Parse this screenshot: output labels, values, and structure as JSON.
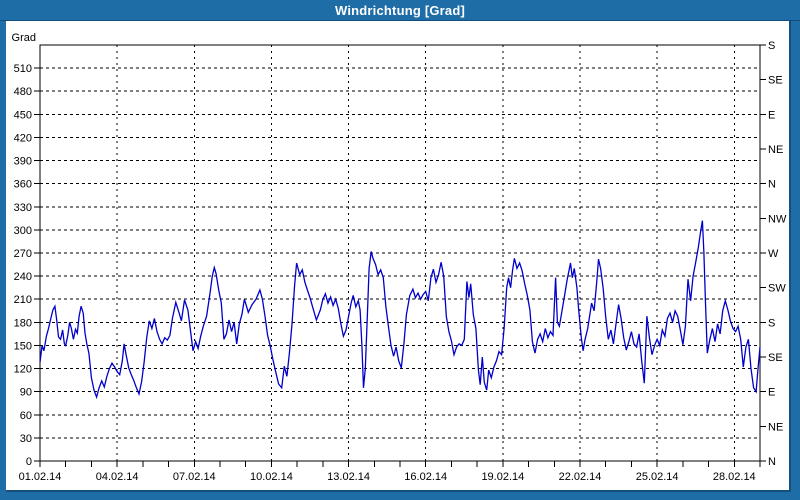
{
  "window": {
    "title": "Windrichtung [Grad]"
  },
  "colors": {
    "frame_blue": "#1e6da7",
    "frame_dark": "#164e7c",
    "series_blue": "#0000cc",
    "plot_background": "#ffffff",
    "grid_black": "#000000"
  },
  "chart_data": {
    "type": "line",
    "title": "Windrichtung [Grad]",
    "grid": "dashed",
    "legend": "none",
    "y_axis_left": {
      "unit_label": "Grad",
      "min": 0,
      "max": 540,
      "tick_step": 30,
      "tick_labels": [
        "0",
        "30",
        "60",
        "90",
        "120",
        "150",
        "180",
        "210",
        "240",
        "270",
        "300",
        "330",
        "360",
        "390",
        "420",
        "450",
        "480",
        "510"
      ]
    },
    "y_axis_right": {
      "tick_step": 45,
      "labels": [
        {
          "deg": 540,
          "label": "S"
        },
        {
          "deg": 495,
          "label": "SE"
        },
        {
          "deg": 450,
          "label": "E"
        },
        {
          "deg": 405,
          "label": "NE"
        },
        {
          "deg": 360,
          "label": "N"
        },
        {
          "deg": 315,
          "label": "NW"
        },
        {
          "deg": 270,
          "label": "W"
        },
        {
          "deg": 225,
          "label": "SW"
        },
        {
          "deg": 180,
          "label": "S"
        },
        {
          "deg": 135,
          "label": "SE"
        },
        {
          "deg": 90,
          "label": "E"
        },
        {
          "deg": 45,
          "label": "NE"
        },
        {
          "deg": 0,
          "label": "N"
        }
      ]
    },
    "x_axis": {
      "span_days": 28,
      "major_tick_interval_days": 3,
      "minor_tick_interval_days": 1,
      "tick_labels": [
        "01.02.14",
        "04.02.14",
        "07.02.14",
        "10.02.14",
        "13.02.14",
        "16.02.14",
        "19.02.14",
        "22.02.14",
        "25.02.14",
        "28.02.14"
      ]
    },
    "series": [
      {
        "name": "Windrichtung",
        "color": "#0000cc",
        "points": [
          [
            0,
            128
          ],
          [
            0.08,
            150
          ],
          [
            0.15,
            143
          ],
          [
            0.25,
            162
          ],
          [
            0.33,
            172
          ],
          [
            0.42,
            185
          ],
          [
            0.5,
            196
          ],
          [
            0.58,
            201
          ],
          [
            0.65,
            183
          ],
          [
            0.72,
            161
          ],
          [
            0.8,
            158
          ],
          [
            0.88,
            170
          ],
          [
            0.95,
            152
          ],
          [
            1.0,
            150
          ],
          [
            1.08,
            163
          ],
          [
            1.15,
            180
          ],
          [
            1.22,
            172
          ],
          [
            1.3,
            158
          ],
          [
            1.38,
            171
          ],
          [
            1.45,
            166
          ],
          [
            1.52,
            188
          ],
          [
            1.6,
            201
          ],
          [
            1.68,
            192
          ],
          [
            1.75,
            166
          ],
          [
            1.82,
            152
          ],
          [
            1.9,
            140
          ],
          [
            2.0,
            108
          ],
          [
            2.1,
            92
          ],
          [
            2.2,
            83
          ],
          [
            2.3,
            95
          ],
          [
            2.4,
            104
          ],
          [
            2.5,
            96
          ],
          [
            2.6,
            110
          ],
          [
            2.7,
            120
          ],
          [
            2.8,
            127
          ],
          [
            2.9,
            122
          ],
          [
            3.0,
            116
          ],
          [
            3.1,
            112
          ],
          [
            3.2,
            130
          ],
          [
            3.27,
            152
          ],
          [
            3.35,
            138
          ],
          [
            3.45,
            121
          ],
          [
            3.55,
            112
          ],
          [
            3.65,
            104
          ],
          [
            3.75,
            95
          ],
          [
            3.85,
            87
          ],
          [
            3.95,
            103
          ],
          [
            4.05,
            128
          ],
          [
            4.15,
            160
          ],
          [
            4.25,
            182
          ],
          [
            4.35,
            172
          ],
          [
            4.45,
            185
          ],
          [
            4.55,
            168
          ],
          [
            4.65,
            158
          ],
          [
            4.75,
            152
          ],
          [
            4.85,
            160
          ],
          [
            4.95,
            157
          ],
          [
            5.05,
            163
          ],
          [
            5.15,
            185
          ],
          [
            5.28,
            206
          ],
          [
            5.4,
            193
          ],
          [
            5.5,
            182
          ],
          [
            5.62,
            209
          ],
          [
            5.75,
            196
          ],
          [
            5.85,
            170
          ],
          [
            5.95,
            143
          ],
          [
            6.05,
            155
          ],
          [
            6.15,
            146
          ],
          [
            6.25,
            162
          ],
          [
            6.35,
            175
          ],
          [
            6.48,
            188
          ],
          [
            6.6,
            215
          ],
          [
            6.7,
            240
          ],
          [
            6.78,
            251
          ],
          [
            6.85,
            243
          ],
          [
            6.95,
            222
          ],
          [
            7.05,
            205
          ],
          [
            7.15,
            158
          ],
          [
            7.25,
            165
          ],
          [
            7.35,
            183
          ],
          [
            7.45,
            168
          ],
          [
            7.55,
            180
          ],
          [
            7.65,
            152
          ],
          [
            7.75,
            178
          ],
          [
            7.85,
            190
          ],
          [
            7.95,
            210
          ],
          [
            8.1,
            193
          ],
          [
            8.25,
            203
          ],
          [
            8.4,
            210
          ],
          [
            8.55,
            222
          ],
          [
            8.65,
            210
          ],
          [
            8.75,
            188
          ],
          [
            8.85,
            163
          ],
          [
            8.95,
            150
          ],
          [
            9.05,
            133
          ],
          [
            9.15,
            118
          ],
          [
            9.28,
            100
          ],
          [
            9.4,
            95
          ],
          [
            9.5,
            123
          ],
          [
            9.6,
            110
          ],
          [
            9.7,
            140
          ],
          [
            9.8,
            178
          ],
          [
            9.9,
            228
          ],
          [
            9.98,
            257
          ],
          [
            10.1,
            242
          ],
          [
            10.2,
            248
          ],
          [
            10.3,
            232
          ],
          [
            10.4,
            222
          ],
          [
            10.5,
            212
          ],
          [
            10.6,
            200
          ],
          [
            10.75,
            183
          ],
          [
            10.9,
            196
          ],
          [
            11.0,
            210
          ],
          [
            11.1,
            217
          ],
          [
            11.2,
            205
          ],
          [
            11.3,
            213
          ],
          [
            11.4,
            202
          ],
          [
            11.5,
            210
          ],
          [
            11.6,
            198
          ],
          [
            11.7,
            178
          ],
          [
            11.8,
            162
          ],
          [
            11.9,
            170
          ],
          [
            12.0,
            188
          ],
          [
            12.1,
            205
          ],
          [
            12.18,
            215
          ],
          [
            12.28,
            200
          ],
          [
            12.38,
            208
          ],
          [
            12.45,
            196
          ],
          [
            12.52,
            150
          ],
          [
            12.58,
            95
          ],
          [
            12.65,
            120
          ],
          [
            12.72,
            180
          ],
          [
            12.8,
            250
          ],
          [
            12.88,
            272
          ],
          [
            12.95,
            263
          ],
          [
            13.05,
            255
          ],
          [
            13.15,
            242
          ],
          [
            13.25,
            248
          ],
          [
            13.35,
            238
          ],
          [
            13.45,
            200
          ],
          [
            13.55,
            175
          ],
          [
            13.65,
            150
          ],
          [
            13.75,
            136
          ],
          [
            13.85,
            148
          ],
          [
            13.95,
            130
          ],
          [
            14.05,
            121
          ],
          [
            14.15,
            152
          ],
          [
            14.25,
            190
          ],
          [
            14.38,
            215
          ],
          [
            14.5,
            223
          ],
          [
            14.6,
            212
          ],
          [
            14.7,
            218
          ],
          [
            14.8,
            210
          ],
          [
            14.9,
            216
          ],
          [
            15.0,
            220
          ],
          [
            15.1,
            208
          ],
          [
            15.2,
            238
          ],
          [
            15.3,
            249
          ],
          [
            15.4,
            232
          ],
          [
            15.5,
            242
          ],
          [
            15.6,
            258
          ],
          [
            15.7,
            240
          ],
          [
            15.8,
            188
          ],
          [
            15.9,
            168
          ],
          [
            16.0,
            156
          ],
          [
            16.1,
            138
          ],
          [
            16.2,
            148
          ],
          [
            16.3,
            152
          ],
          [
            16.4,
            150
          ],
          [
            16.5,
            158
          ],
          [
            16.6,
            233
          ],
          [
            16.68,
            212
          ],
          [
            16.75,
            230
          ],
          [
            16.85,
            190
          ],
          [
            16.95,
            172
          ],
          [
            17.05,
            118
          ],
          [
            17.12,
            99
          ],
          [
            17.2,
            135
          ],
          [
            17.28,
            102
          ],
          [
            17.37,
            92
          ],
          [
            17.45,
            118
          ],
          [
            17.55,
            108
          ],
          [
            17.65,
            122
          ],
          [
            17.75,
            130
          ],
          [
            17.85,
            142
          ],
          [
            17.95,
            138
          ],
          [
            18.05,
            172
          ],
          [
            18.15,
            225
          ],
          [
            18.22,
            238
          ],
          [
            18.3,
            225
          ],
          [
            18.38,
            248
          ],
          [
            18.45,
            263
          ],
          [
            18.55,
            250
          ],
          [
            18.65,
            257
          ],
          [
            18.75,
            247
          ],
          [
            18.85,
            230
          ],
          [
            18.95,
            215
          ],
          [
            19.05,
            196
          ],
          [
            19.15,
            155
          ],
          [
            19.25,
            140
          ],
          [
            19.35,
            158
          ],
          [
            19.45,
            165
          ],
          [
            19.55,
            155
          ],
          [
            19.65,
            172
          ],
          [
            19.75,
            160
          ],
          [
            19.85,
            168
          ],
          [
            19.95,
            163
          ],
          [
            20.05,
            238
          ],
          [
            20.12,
            180
          ],
          [
            20.2,
            175
          ],
          [
            20.3,
            195
          ],
          [
            20.4,
            215
          ],
          [
            20.5,
            235
          ],
          [
            20.63,
            257
          ],
          [
            20.7,
            238
          ],
          [
            20.78,
            250
          ],
          [
            20.88,
            225
          ],
          [
            20.95,
            196
          ],
          [
            21.05,
            160
          ],
          [
            21.12,
            143
          ],
          [
            21.2,
            158
          ],
          [
            21.3,
            172
          ],
          [
            21.45,
            205
          ],
          [
            21.55,
            195
          ],
          [
            21.65,
            232
          ],
          [
            21.72,
            262
          ],
          [
            21.8,
            250
          ],
          [
            21.9,
            225
          ],
          [
            22.0,
            187
          ],
          [
            22.1,
            158
          ],
          [
            22.2,
            170
          ],
          [
            22.3,
            152
          ],
          [
            22.4,
            178
          ],
          [
            22.5,
            203
          ],
          [
            22.6,
            185
          ],
          [
            22.7,
            160
          ],
          [
            22.8,
            144
          ],
          [
            22.9,
            155
          ],
          [
            23.0,
            168
          ],
          [
            23.1,
            152
          ],
          [
            23.2,
            148
          ],
          [
            23.3,
            165
          ],
          [
            23.4,
            130
          ],
          [
            23.5,
            101
          ],
          [
            23.6,
            188
          ],
          [
            23.7,
            160
          ],
          [
            23.8,
            138
          ],
          [
            23.9,
            150
          ],
          [
            24.0,
            158
          ],
          [
            24.1,
            150
          ],
          [
            24.2,
            170
          ],
          [
            24.3,
            162
          ],
          [
            24.4,
            185
          ],
          [
            24.5,
            192
          ],
          [
            24.6,
            180
          ],
          [
            24.7,
            195
          ],
          [
            24.8,
            188
          ],
          [
            24.9,
            170
          ],
          [
            25.0,
            151
          ],
          [
            25.1,
            175
          ],
          [
            25.2,
            236
          ],
          [
            25.3,
            208
          ],
          [
            25.4,
            240
          ],
          [
            25.5,
            258
          ],
          [
            25.6,
            277
          ],
          [
            25.68,
            295
          ],
          [
            25.76,
            312
          ],
          [
            25.82,
            270
          ],
          [
            25.88,
            205
          ],
          [
            25.95,
            140
          ],
          [
            26.05,
            158
          ],
          [
            26.15,
            172
          ],
          [
            26.25,
            155
          ],
          [
            26.35,
            178
          ],
          [
            26.45,
            165
          ],
          [
            26.55,
            195
          ],
          [
            26.65,
            208
          ],
          [
            26.75,
            196
          ],
          [
            26.85,
            182
          ],
          [
            26.95,
            172
          ],
          [
            27.05,
            168
          ],
          [
            27.15,
            175
          ],
          [
            27.25,
            158
          ],
          [
            27.35,
            122
          ],
          [
            27.45,
            148
          ],
          [
            27.55,
            158
          ],
          [
            27.65,
            120
          ],
          [
            27.75,
            95
          ],
          [
            27.85,
            90
          ],
          [
            27.92,
            118
          ],
          [
            28.0,
            148
          ]
        ]
      }
    ]
  }
}
